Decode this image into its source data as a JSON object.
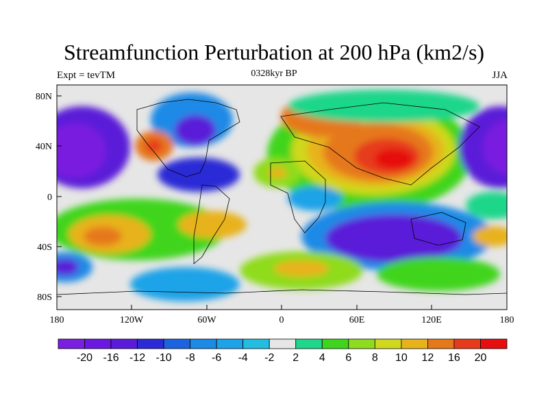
{
  "title": "Streamfunction Perturbation at 200 hPa (km2/s)",
  "left_subtitle": "Expt = tevTM",
  "center_subtitle": "0328kyr BP",
  "right_subtitle": "JJA",
  "y_ticks": [
    "80N",
    "40N",
    "0",
    "40S",
    "80S"
  ],
  "x_ticks": [
    "180",
    "120W",
    "60W",
    "0",
    "60E",
    "120E",
    "180"
  ],
  "colorbar": {
    "colors": [
      "#7a1fe0",
      "#6a18e0",
      "#5a1cd8",
      "#2a2ad6",
      "#1c63e0",
      "#1d8ae6",
      "#1fa3e8",
      "#22bde0",
      "#e6e6e6",
      "#1fd68a",
      "#3fd51f",
      "#8fdb1f",
      "#cfd81f",
      "#e8b21c",
      "#e6781c",
      "#e63a1c",
      "#e60f0f"
    ],
    "labels": [
      "-20",
      "-16",
      "-12",
      "-10",
      "-8",
      "-6",
      "-4",
      "-2",
      "2",
      "4",
      "6",
      "8",
      "10",
      "12",
      "16",
      "20"
    ]
  }
}
